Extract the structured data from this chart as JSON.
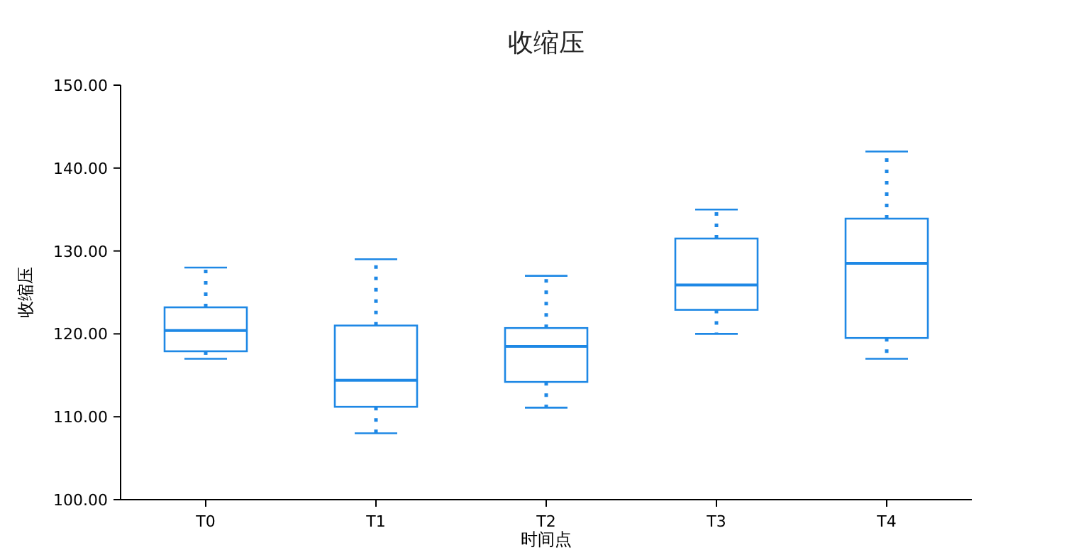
{
  "chart_data": {
    "type": "box",
    "title": "收缩压",
    "xlabel": "时间点",
    "ylabel": "收缩压",
    "categories": [
      "T0",
      "T1",
      "T2",
      "T3",
      "T4"
    ],
    "ylim": [
      100,
      150
    ],
    "yticks": [
      {
        "value": 100,
        "label": "100.00"
      },
      {
        "value": 110,
        "label": "110.00"
      },
      {
        "value": 120,
        "label": "120.00"
      },
      {
        "value": 130,
        "label": "130.00"
      },
      {
        "value": 140,
        "label": "140.00"
      },
      {
        "value": 150,
        "label": "150.00"
      }
    ],
    "grid": false,
    "series": [
      {
        "color": "#1e88e5",
        "boxes": [
          {
            "low": 117,
            "q1": 117.9,
            "median": 120.4,
            "q3": 123.2,
            "high": 128
          },
          {
            "low": 108,
            "q1": 111.2,
            "median": 114.4,
            "q3": 121,
            "high": 129
          },
          {
            "low": 111.1,
            "q1": 114.2,
            "median": 118.5,
            "q3": 120.7,
            "high": 127
          },
          {
            "low": 120,
            "q1": 122.9,
            "median": 125.9,
            "q3": 131.5,
            "high": 135
          },
          {
            "low": 117,
            "q1": 119.5,
            "median": 128.5,
            "q3": 133.9,
            "high": 142
          }
        ]
      }
    ]
  }
}
